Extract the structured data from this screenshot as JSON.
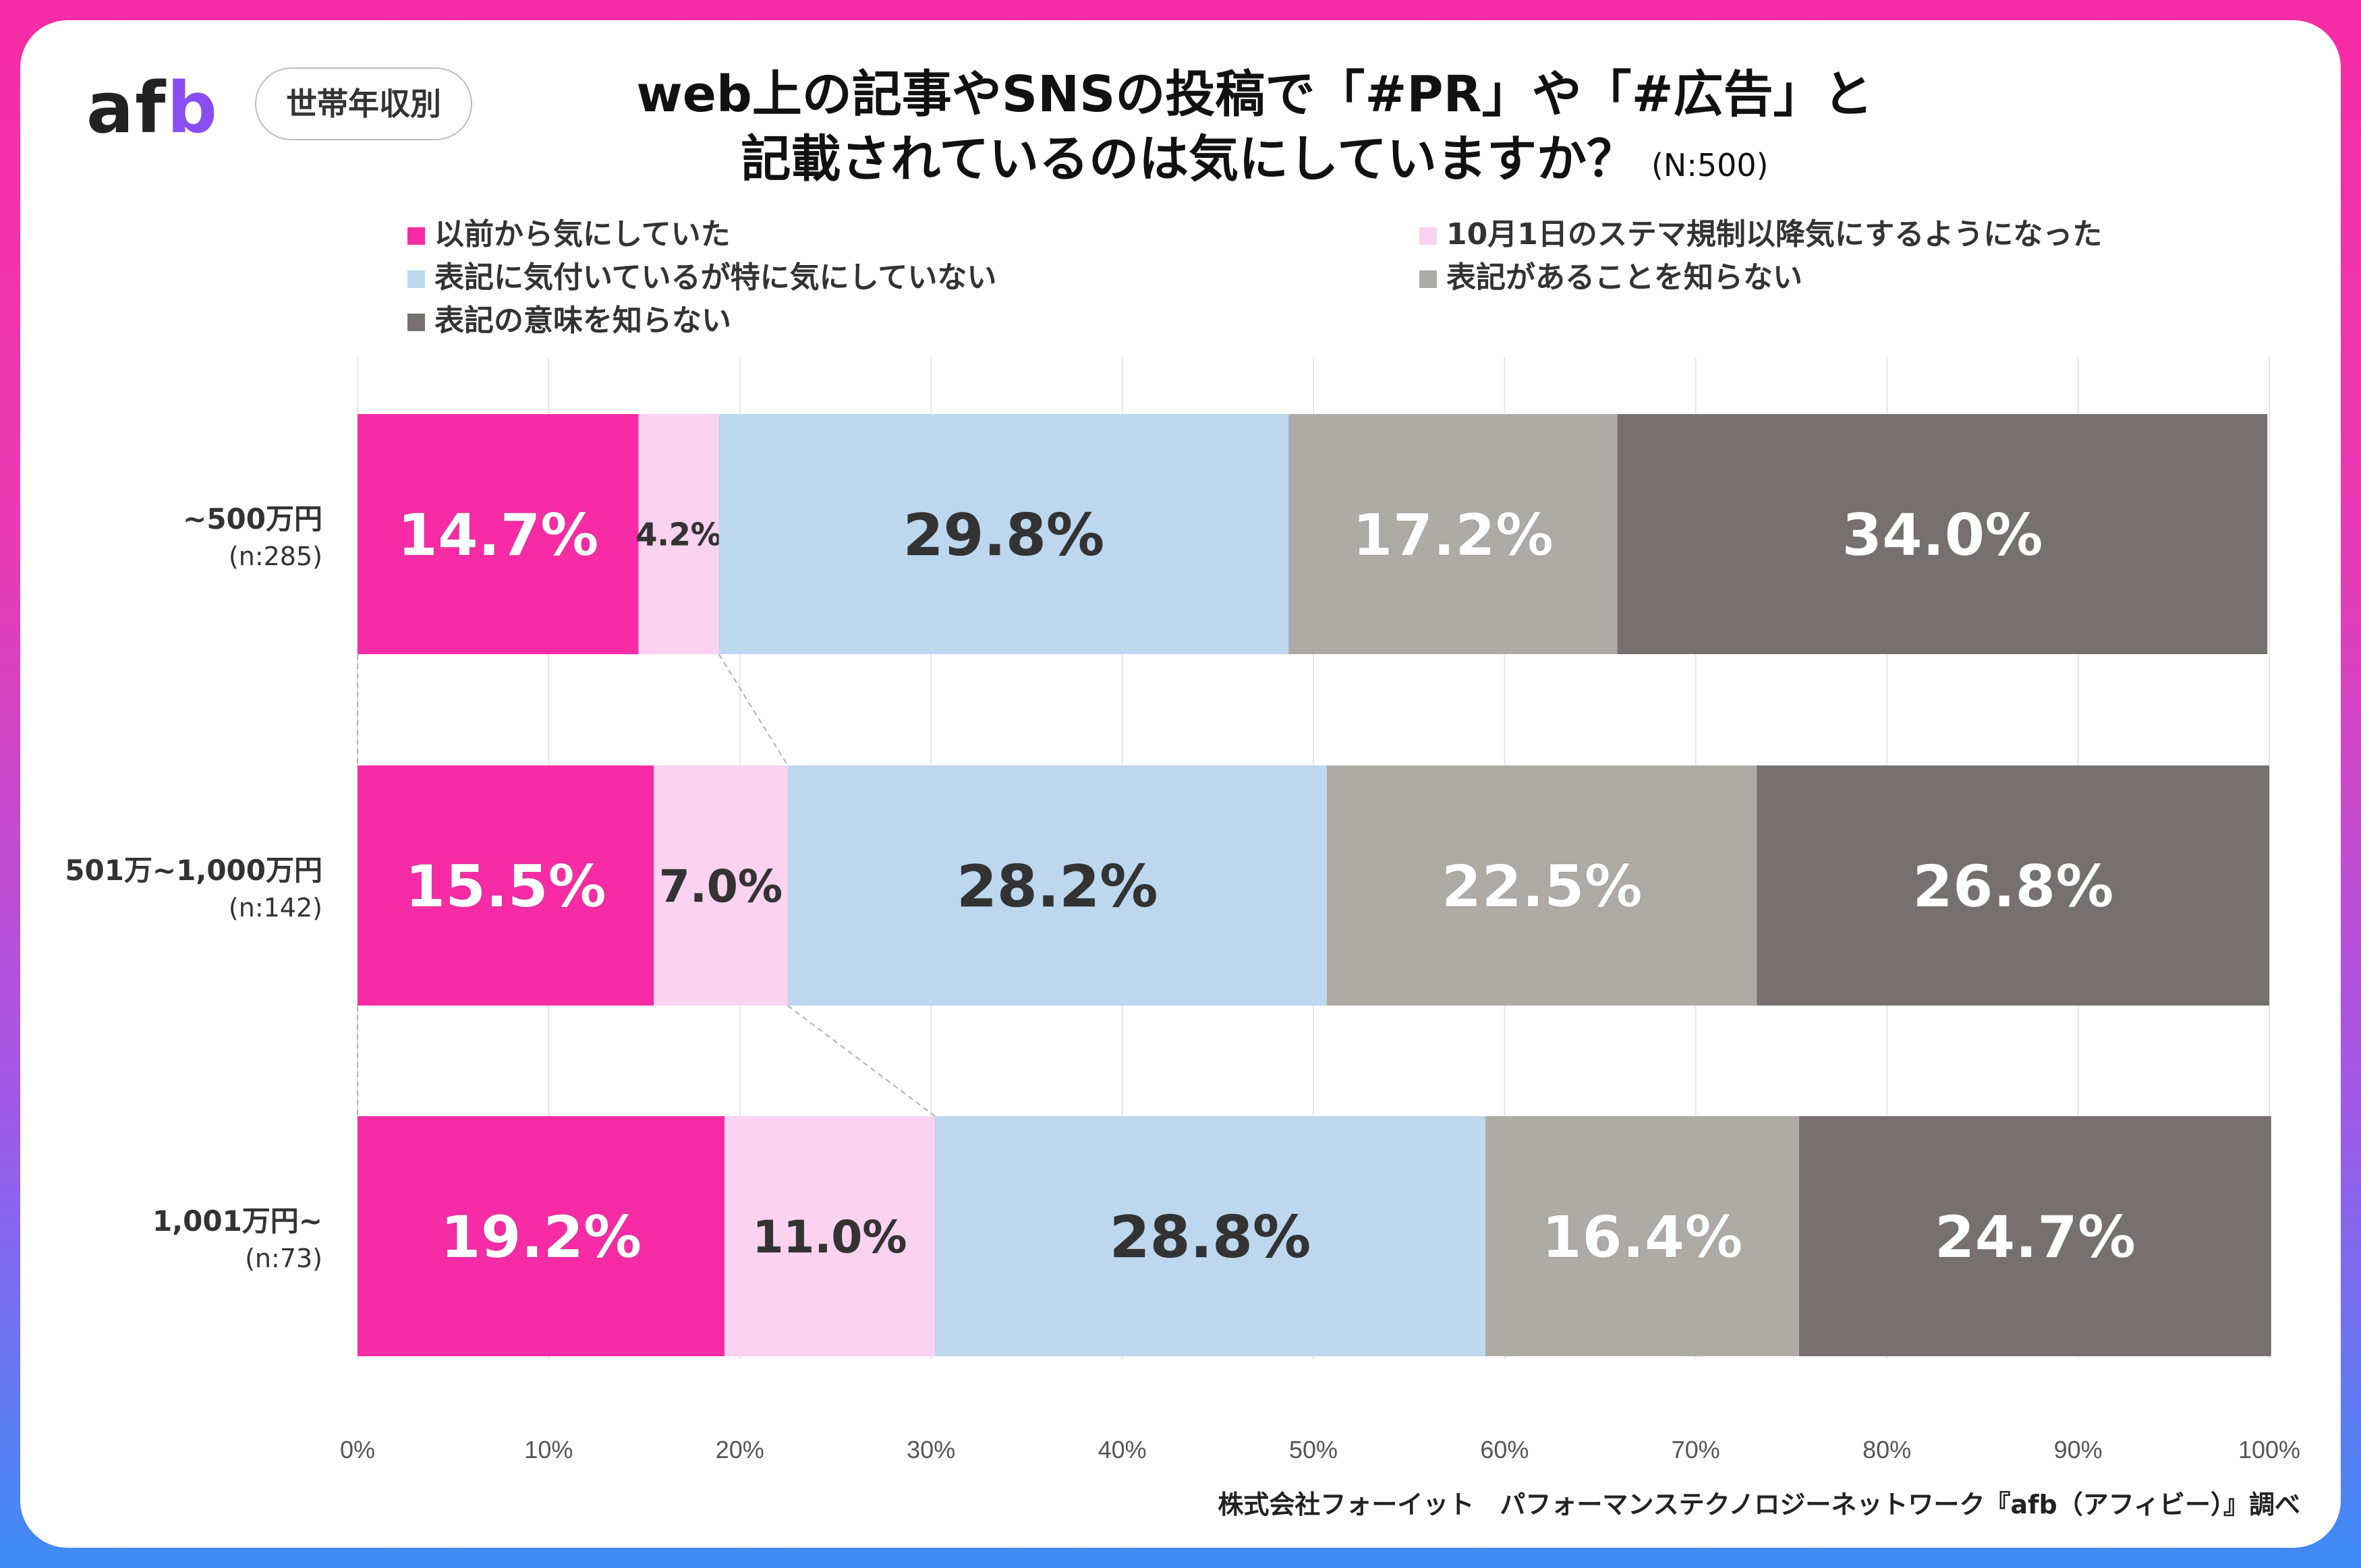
{
  "header": {
    "logo_text": "af",
    "logo_accent": "b",
    "tag": "世帯年収別",
    "title_line1": "web上の記事やSNSの投稿で「#PR」や「#広告」と",
    "title_line2": "記載されているのは気にしていますか？",
    "sample_size": "(N:500)"
  },
  "footer": {
    "source": "株式会社フォーイット　パフォーマンステクノロジーネットワーク『afb（アフィビー）』調べ"
  },
  "chart_data": {
    "type": "bar",
    "orientation": "horizontal",
    "stacked": "percent",
    "categories": [
      "~500万円",
      "501万~1,000万円",
      "1,001万円~"
    ],
    "category_sizes": [
      "(n:285)",
      "(n:142)",
      "(n:73)"
    ],
    "series": [
      {
        "name": "以前から気にしていた",
        "values": [
          14.7,
          15.5,
          19.2
        ],
        "labels": [
          "14.7%",
          "15.5%",
          "19.2%"
        ],
        "color": "#f72ba5",
        "label_color": "#ffffff"
      },
      {
        "name": "10月1日のステマ規制以降気にするようになった",
        "values": [
          4.2,
          7.0,
          11.0
        ],
        "labels": [
          "4.2%",
          "7.0%",
          "11.0%"
        ],
        "color": "#fbd3f1",
        "label_color": "#333333"
      },
      {
        "name": "表記に気付いているが特に気にしていない",
        "values": [
          29.8,
          28.2,
          28.8
        ],
        "labels": [
          "29.8%",
          "28.2%",
          "28.8%"
        ],
        "color": "#bdd7ee",
        "label_color": "#333333"
      },
      {
        "name": "表記があることを知らない",
        "values": [
          17.2,
          22.5,
          16.4
        ],
        "labels": [
          "17.2%",
          "22.5%",
          "16.4%"
        ],
        "color": "#aeaaa6",
        "label_color": "#ffffff"
      },
      {
        "name": "表記の意味を知らない",
        "values": [
          34.0,
          26.8,
          24.7
        ],
        "labels": [
          "34.0%",
          "26.8%",
          "24.7%"
        ],
        "color": "#767170",
        "label_color": "#ffffff"
      }
    ],
    "xlim": [
      0,
      100
    ],
    "xticks": [
      "0%",
      "10%",
      "20%",
      "30%",
      "40%",
      "50%",
      "60%",
      "70%",
      "80%",
      "90%",
      "100%"
    ],
    "grid": true,
    "legend_position": "top",
    "series_lines": true
  }
}
